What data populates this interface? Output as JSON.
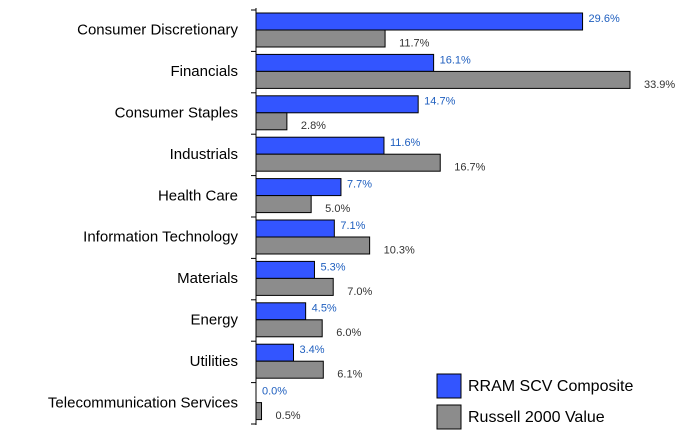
{
  "chart_data": {
    "type": "bar",
    "orientation": "horizontal",
    "categories": [
      "Consumer Discretionary",
      "Financials",
      "Consumer Staples",
      "Industrials",
      "Health Care",
      "Information Technology",
      "Materials",
      "Energy",
      "Utilities",
      "Telecommunication Services"
    ],
    "series": [
      {
        "name": "RRAM SCV Composite",
        "color": "#3355ff",
        "label_color": "#1f5fbf",
        "values": [
          29.6,
          16.1,
          14.7,
          11.6,
          7.7,
          7.1,
          5.3,
          4.5,
          3.4,
          0.0
        ],
        "value_labels": [
          "29.6%",
          "16.1%",
          "14.7%",
          "11.6%",
          "7.7%",
          "7.1%",
          "5.3%",
          "4.5%",
          "3.4%",
          "0.0%"
        ]
      },
      {
        "name": "Russell 2000 Value",
        "color": "#8c8c8c",
        "label_color": "#333333",
        "values": [
          11.7,
          33.9,
          2.8,
          16.7,
          5.0,
          10.3,
          7.0,
          6.0,
          6.1,
          0.5
        ],
        "value_labels": [
          "11.7%",
          "33.9%",
          "2.8%",
          "16.7%",
          "5.0%",
          "10.3%",
          "7.0%",
          "6.0%",
          "6.1%",
          "0.5%"
        ]
      }
    ],
    "legend": "lower right"
  }
}
